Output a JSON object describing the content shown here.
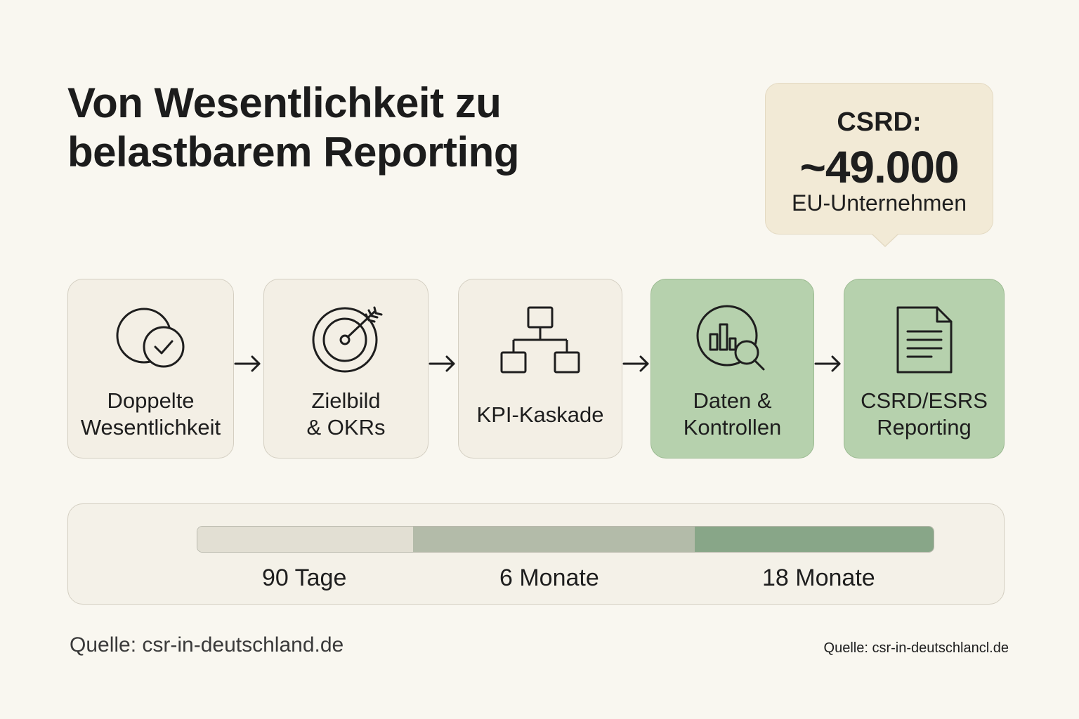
{
  "title": {
    "line1": "Von Wesentlichkeit zu",
    "line2": "belastbarem Reporting"
  },
  "callout": {
    "label": "CSRD:",
    "value": "~49.000",
    "sub": "EU-Unternehmen"
  },
  "steps": [
    {
      "line1": "Doppelte",
      "line2": "Wesentlichkeit",
      "icon": "circle-check-icon",
      "highlight": false
    },
    {
      "line1": "Zielbild",
      "line2": "& OKRs",
      "icon": "target-icon",
      "highlight": false
    },
    {
      "line1": "KPI-Kaskade",
      "line2": "",
      "icon": "hierarchy-icon",
      "highlight": false
    },
    {
      "line1": "Daten &",
      "line2": "Kontrollen",
      "icon": "chart-magnifier-icon",
      "highlight": true
    },
    {
      "line1": "CSRD/ESRS",
      "line2": "Reporting",
      "icon": "document-icon",
      "highlight": true
    }
  ],
  "timeline": {
    "phases": [
      {
        "label": "90 Tage",
        "color": "#e2dfd3"
      },
      {
        "label": "6 Monate",
        "color": "#b3bba9"
      },
      {
        "label": "18 Monate",
        "color": "#88a688"
      }
    ]
  },
  "source_left": "Quelle: csr-in-deutschland.de",
  "source_right": "Quelle: csr-in-deutschlancl.de",
  "colors": {
    "background": "#f9f7f0",
    "card": "#f3efe5",
    "card_highlight": "#b6d1ad",
    "callout": "#f2ead6"
  }
}
